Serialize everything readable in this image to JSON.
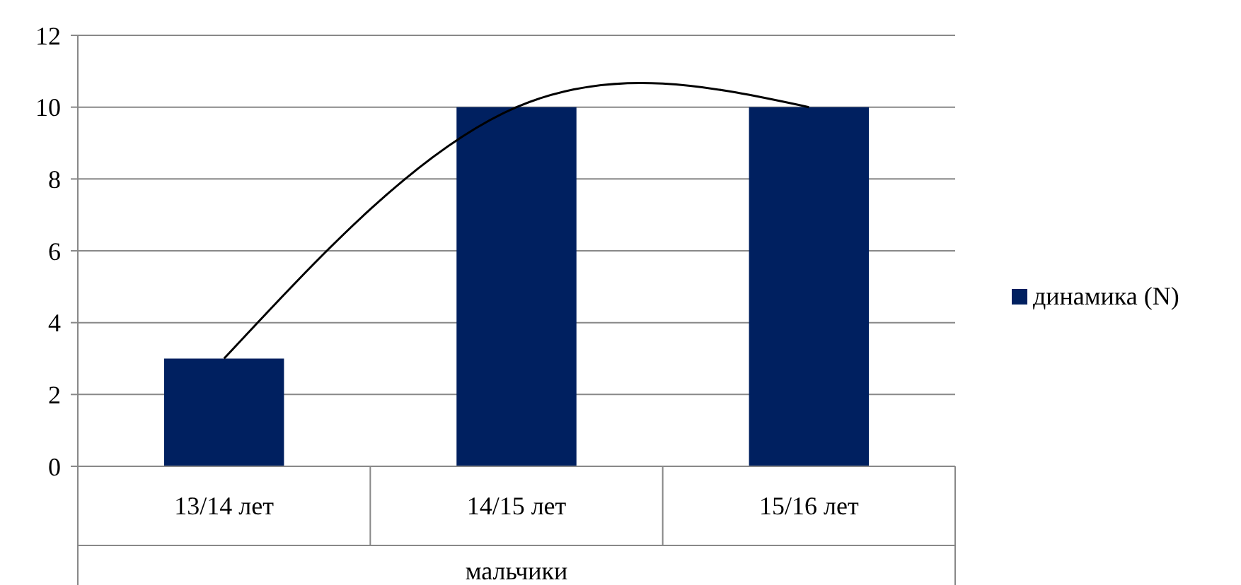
{
  "chart_data": {
    "type": "bar",
    "xlabel": "мальчики",
    "categories": [
      "13/14 лет",
      "14/15 лет",
      "15/16 лет"
    ],
    "series": [
      {
        "name": "динамика (N)",
        "color": "#002060",
        "values": [
          3,
          10,
          10
        ]
      },
      {
        "type": "line",
        "color": "#000000",
        "values": [
          3,
          10,
          10
        ]
      }
    ],
    "ylim": [
      0,
      12
    ],
    "yticks": [
      0,
      2,
      4,
      6,
      8,
      10,
      12
    ],
    "grid": "y",
    "legend": "right",
    "marker": "none"
  }
}
